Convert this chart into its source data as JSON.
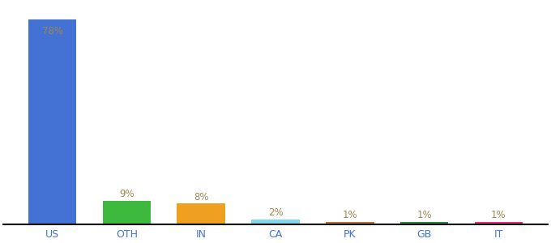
{
  "categories": [
    "US",
    "OTH",
    "IN",
    "CA",
    "PK",
    "GB",
    "IT"
  ],
  "values": [
    78,
    9,
    8,
    2,
    1,
    1,
    1
  ],
  "labels": [
    "78%",
    "9%",
    "8%",
    "2%",
    "1%",
    "1%",
    "1%"
  ],
  "colors": [
    "#4472d4",
    "#3dba3d",
    "#f0a020",
    "#80d8f0",
    "#c87040",
    "#2d8a40",
    "#e83080"
  ],
  "label_color": "#9a8850",
  "tick_color": "#4472d4",
  "bar_width": 0.65,
  "ylim": [
    0,
    84
  ],
  "figsize": [
    6.8,
    3.0
  ],
  "dpi": 100
}
